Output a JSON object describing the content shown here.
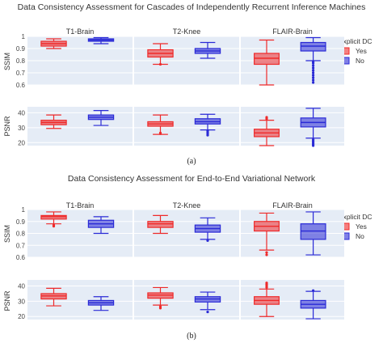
{
  "chart_data": [
    {
      "type": "box",
      "title": "Data Consistency Assessment for Cascades of Independently Recurrent Inference Machines",
      "caption": "(a)",
      "columns": [
        "T1-Brain",
        "T2-Knee",
        "FLAIR-Brain"
      ],
      "legend": {
        "title": "Explicit DC",
        "entries": [
          "Yes",
          "No"
        ],
        "placement": "right"
      },
      "rows": [
        {
          "ylabel": "SSIM",
          "ylim": [
            0.6,
            1.0
          ],
          "ticks": [
            "1",
            "0.9",
            "0.8",
            "0.7",
            "0.6"
          ],
          "tickvals": [
            1.0,
            0.9,
            0.8,
            0.7,
            0.6
          ],
          "boxes": [
            [
              {
                "series": "Yes",
                "min": 0.9,
                "q1": 0.92,
                "median": 0.94,
                "q3": 0.96,
                "max": 0.98,
                "outliers": []
              },
              {
                "series": "No",
                "min": 0.94,
                "q1": 0.96,
                "median": 0.97,
                "q3": 0.98,
                "max": 0.99,
                "outliers": []
              }
            ],
            [
              {
                "series": "Yes",
                "min": 0.77,
                "q1": 0.83,
                "median": 0.86,
                "q3": 0.89,
                "max": 0.94,
                "outliers": [
                  0.77
                ]
              },
              {
                "series": "No",
                "min": 0.82,
                "q1": 0.86,
                "median": 0.88,
                "q3": 0.9,
                "max": 0.95,
                "outliers": []
              }
            ],
            [
              {
                "series": "Yes",
                "min": 0.6,
                "q1": 0.77,
                "median": 0.82,
                "q3": 0.86,
                "max": 0.97,
                "outliers": []
              },
              {
                "series": "No",
                "min": 0.8,
                "q1": 0.88,
                "median": 0.92,
                "q3": 0.95,
                "max": 0.99,
                "outliers": [
                  0.62,
                  0.64,
                  0.66,
                  0.68,
                  0.7,
                  0.72,
                  0.74,
                  0.76,
                  0.78,
                  0.79
                ]
              }
            ]
          ]
        },
        {
          "ylabel": "PSNR",
          "ylim": [
            18,
            44
          ],
          "ticks": [
            "40",
            "30",
            "20"
          ],
          "tickvals": [
            40,
            30,
            20
          ],
          "boxes": [
            [
              {
                "series": "Yes",
                "min": 29.5,
                "q1": 32.0,
                "median": 33.5,
                "q3": 35.0,
                "max": 38.5,
                "outliers": []
              },
              {
                "series": "No",
                "min": 31.5,
                "q1": 35.5,
                "median": 37.0,
                "q3": 38.5,
                "max": 41.5,
                "outliers": []
              }
            ],
            [
              {
                "series": "Yes",
                "min": 25.5,
                "q1": 31.0,
                "median": 32.5,
                "q3": 34.0,
                "max": 38.5,
                "outliers": [
                  26.0,
                  26.5
                ]
              },
              {
                "series": "No",
                "min": 28.5,
                "q1": 32.5,
                "median": 34.0,
                "q3": 36.0,
                "max": 39.0,
                "outliers": [
                  25.0,
                  26.0,
                  27.0,
                  28.0
                ]
              }
            ],
            [
              {
                "series": "Yes",
                "min": 18.0,
                "q1": 24.0,
                "median": 26.5,
                "q3": 29.0,
                "max": 35.0,
                "outliers": [
                  36.0,
                  37.0
                ]
              },
              {
                "series": "No",
                "min": 23.0,
                "q1": 30.5,
                "median": 33.5,
                "q3": 36.5,
                "max": 43.0,
                "outliers": [
                  18.0,
                  19.0,
                  20.0,
                  21.0,
                  22.0
                ]
              }
            ]
          ]
        }
      ]
    },
    {
      "type": "box",
      "title": "Data Consistency Assessment for End-to-End Variational Network",
      "caption": "(b)",
      "columns": [
        "T1-Brain",
        "T2-Knee",
        "FLAIR-Brain"
      ],
      "legend": {
        "title": "Explicit DC",
        "entries": [
          "Yes",
          "No"
        ],
        "placement": "right"
      },
      "rows": [
        {
          "ylabel": "SSIM",
          "ylim": [
            0.6,
            1.0
          ],
          "ticks": [
            "1",
            "0.9",
            "0.8",
            "0.7",
            "0.6"
          ],
          "tickvals": [
            1.0,
            0.9,
            0.8,
            0.7,
            0.6
          ],
          "boxes": [
            [
              {
                "series": "Yes",
                "min": 0.88,
                "q1": 0.92,
                "median": 0.94,
                "q3": 0.95,
                "max": 0.98,
                "outliers": [
                  0.86,
                  0.87
                ]
              },
              {
                "series": "No",
                "min": 0.8,
                "q1": 0.85,
                "median": 0.88,
                "q3": 0.91,
                "max": 0.94,
                "outliers": []
              }
            ],
            [
              {
                "series": "Yes",
                "min": 0.8,
                "q1": 0.85,
                "median": 0.88,
                "q3": 0.9,
                "max": 0.95,
                "outliers": []
              },
              {
                "series": "No",
                "min": 0.75,
                "q1": 0.81,
                "median": 0.84,
                "q3": 0.87,
                "max": 0.93,
                "outliers": [
                  0.74
                ]
              }
            ],
            [
              {
                "series": "Yes",
                "min": 0.66,
                "q1": 0.82,
                "median": 0.86,
                "q3": 0.9,
                "max": 0.97,
                "outliers": [
                  0.62,
                  0.64
                ]
              },
              {
                "series": "No",
                "min": 0.62,
                "q1": 0.75,
                "median": 0.82,
                "q3": 0.88,
                "max": 0.98,
                "outliers": []
              }
            ]
          ]
        },
        {
          "ylabel": "PSNR",
          "ylim": [
            18,
            44
          ],
          "ticks": [
            "40",
            "30",
            "20"
          ],
          "tickvals": [
            40,
            30,
            20
          ],
          "boxes": [
            [
              {
                "series": "Yes",
                "min": 27.0,
                "q1": 31.5,
                "median": 33.5,
                "q3": 35.0,
                "max": 38.5,
                "outliers": []
              },
              {
                "series": "No",
                "min": 24.0,
                "q1": 27.5,
                "median": 29.0,
                "q3": 30.5,
                "max": 33.0,
                "outliers": []
              }
            ],
            [
              {
                "series": "Yes",
                "min": 27.5,
                "q1": 32.0,
                "median": 34.0,
                "q3": 35.5,
                "max": 39.0,
                "outliers": [
                  25.5,
                  26.5
                ]
              },
              {
                "series": "No",
                "min": 24.5,
                "q1": 29.5,
                "median": 31.5,
                "q3": 33.0,
                "max": 36.0,
                "outliers": [
                  23.0
                ]
              }
            ],
            [
              {
                "series": "Yes",
                "min": 20.0,
                "q1": 28.0,
                "median": 30.5,
                "q3": 33.0,
                "max": 38.0,
                "outliers": [
                  39.0,
                  40.0,
                  41.0,
                  42.0
                ]
              },
              {
                "series": "No",
                "min": 18.5,
                "q1": 25.5,
                "median": 28.0,
                "q3": 30.5,
                "max": 36.5,
                "outliers": [
                  37.0
                ]
              }
            ]
          ]
        }
      ]
    }
  ],
  "colors": {
    "yes": "#ef2a2a",
    "no": "#2a2ad6",
    "panel": "#e5ecf6"
  }
}
